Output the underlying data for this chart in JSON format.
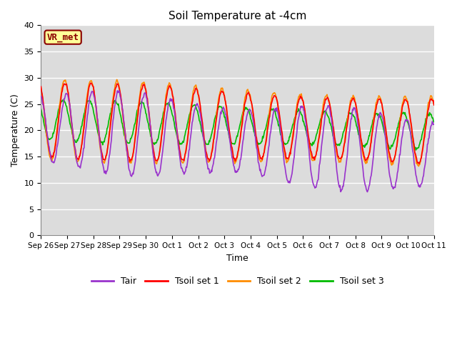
{
  "title": "Soil Temperature at -4cm",
  "xlabel": "Time",
  "ylabel": "Temperature (C)",
  "ylim": [
    0,
    40
  ],
  "yticks": [
    0,
    5,
    10,
    15,
    20,
    25,
    30,
    35,
    40
  ],
  "label_text": "VR_met",
  "label_color": "#8B0000",
  "label_bg": "#FFFF99",
  "bg_color": "#DCDCDC",
  "fig_bg": "#FFFFFF",
  "grid_color": "#FFFFFF",
  "line_colors": {
    "Tair": "#9933CC",
    "Tsoil set 1": "#FF0000",
    "Tsoil set 2": "#FF8C00",
    "Tsoil set 3": "#00BB00"
  },
  "line_width": 1.2,
  "xtick_labels": [
    "Sep 26",
    "Sep 27",
    "Sep 28",
    "Sep 29",
    "Sep 30",
    "Oct 1",
    "Oct 2",
    "Oct 3",
    "Oct 4",
    "Oct 5",
    "Oct 6",
    "Oct 7",
    "Oct 8",
    "Oct 9",
    "Oct 10",
    "Oct 11"
  ],
  "num_days": 15,
  "points_per_day": 48
}
